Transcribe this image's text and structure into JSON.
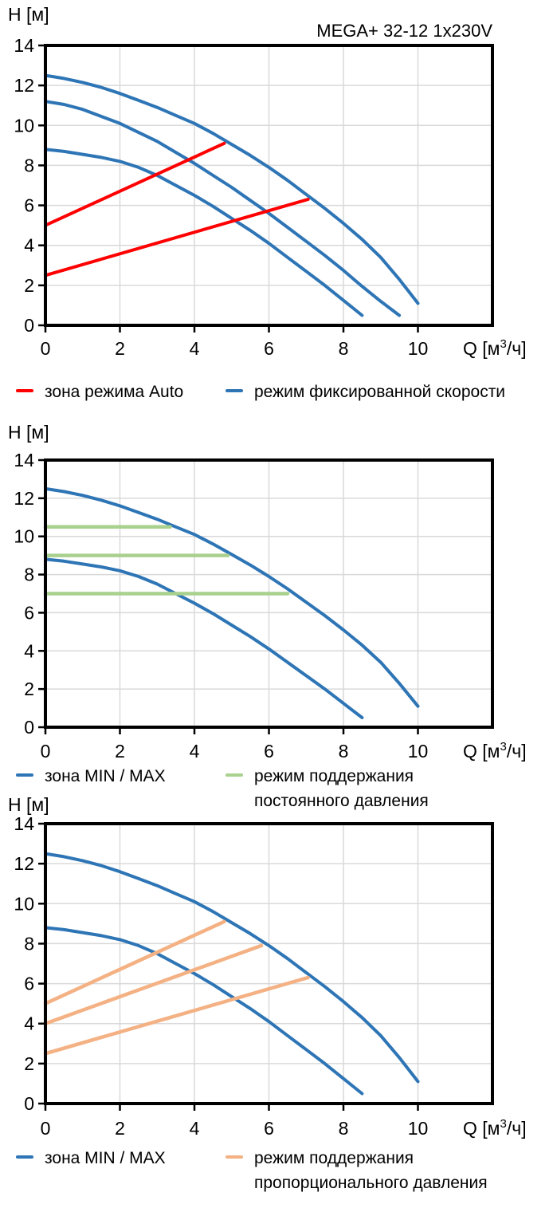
{
  "colors": {
    "curve_blue": "#2E75B6",
    "auto_red": "#FF0000",
    "const_pressure_green": "#A9D18E",
    "prop_pressure_orange": "#F4B183",
    "grid": "#D9D9D9",
    "axis": "#000000"
  },
  "chart_data": [
    {
      "type": "line",
      "title": "MEGA+ 32-12 1x230V",
      "ylabel": "H [м]",
      "xlabel": "Q [м³/ч]",
      "xlabel_parts": {
        "pre": "Q [м",
        "sup": "3",
        "post": "/ч]"
      },
      "xlim": [
        0,
        12
      ],
      "ylim": [
        0,
        14
      ],
      "x_ticks": [
        0,
        2,
        4,
        6,
        8,
        10
      ],
      "y_ticks": [
        0,
        2,
        4,
        6,
        8,
        10,
        12,
        14
      ],
      "grid": true,
      "series": [
        {
          "name": "fixed-speed-max-curve",
          "color": "#2E75B6",
          "width": 4,
          "x": [
            0,
            0.5,
            1,
            1.5,
            2,
            2.5,
            3,
            3.5,
            4,
            4.5,
            5,
            5.5,
            6,
            6.5,
            7,
            7.5,
            8,
            8.5,
            9,
            9.5,
            10
          ],
          "y": [
            12.5,
            12.35,
            12.15,
            11.9,
            11.6,
            11.25,
            10.9,
            10.5,
            10.1,
            9.6,
            9.05,
            8.5,
            7.9,
            7.25,
            6.55,
            5.85,
            5.1,
            4.3,
            3.4,
            2.3,
            1.1
          ]
        },
        {
          "name": "fixed-speed-nominal-curve",
          "color": "#2E75B6",
          "width": 4,
          "x": [
            0,
            0.5,
            1,
            1.5,
            2,
            2.5,
            3,
            3.5,
            4,
            4.5,
            5,
            5.5,
            6,
            6.5,
            7,
            7.5,
            8,
            8.5,
            9,
            9.5
          ],
          "y": [
            11.2,
            11.05,
            10.8,
            10.45,
            10.1,
            9.65,
            9.2,
            8.65,
            8.1,
            7.5,
            6.9,
            6.25,
            5.6,
            4.9,
            4.2,
            3.5,
            2.75,
            1.95,
            1.2,
            0.5
          ]
        },
        {
          "name": "fixed-speed-min-curve",
          "color": "#2E75B6",
          "width": 4,
          "x": [
            0,
            0.5,
            1,
            1.5,
            2,
            2.5,
            3,
            3.5,
            4,
            4.5,
            5,
            5.5,
            6,
            6.5,
            7,
            7.5,
            8,
            8.5
          ],
          "y": [
            8.8,
            8.7,
            8.55,
            8.4,
            8.2,
            7.9,
            7.5,
            7.0,
            6.5,
            5.95,
            5.35,
            4.75,
            4.1,
            3.4,
            2.7,
            2.0,
            1.25,
            0.5
          ]
        },
        {
          "name": "auto-zone-upper-line",
          "color": "#FF0000",
          "width": 4,
          "x": [
            0,
            4.8
          ],
          "y": [
            5.0,
            9.1
          ]
        },
        {
          "name": "auto-zone-lower-line",
          "color": "#FF0000",
          "width": 4,
          "x": [
            0,
            7.05
          ],
          "y": [
            2.5,
            6.3
          ]
        }
      ],
      "legend": [
        {
          "color": "#FF0000",
          "label_lines": [
            "зона режима Auto"
          ]
        },
        {
          "color": "#2E75B6",
          "label_lines": [
            "режим фиксированной скорости"
          ]
        }
      ]
    },
    {
      "type": "line",
      "title": "",
      "ylabel": "H [м]",
      "xlabel": "Q [м³/ч]",
      "xlabel_parts": {
        "pre": "Q [м",
        "sup": "3",
        "post": "/ч]"
      },
      "xlim": [
        0,
        12
      ],
      "ylim": [
        0,
        14
      ],
      "x_ticks": [
        0,
        2,
        4,
        6,
        8,
        10
      ],
      "y_ticks": [
        0,
        2,
        4,
        6,
        8,
        10,
        12,
        14
      ],
      "grid": true,
      "series": [
        {
          "name": "max-curve",
          "color": "#2E75B6",
          "width": 4,
          "x": [
            0,
            0.5,
            1,
            1.5,
            2,
            2.5,
            3,
            3.5,
            4,
            4.5,
            5,
            5.5,
            6,
            6.5,
            7,
            7.5,
            8,
            8.5,
            9,
            9.5,
            10
          ],
          "y": [
            12.5,
            12.35,
            12.15,
            11.9,
            11.6,
            11.25,
            10.9,
            10.5,
            10.1,
            9.6,
            9.05,
            8.5,
            7.9,
            7.25,
            6.55,
            5.85,
            5.1,
            4.3,
            3.4,
            2.3,
            1.1
          ]
        },
        {
          "name": "min-curve",
          "color": "#2E75B6",
          "width": 4,
          "x": [
            0,
            0.5,
            1,
            1.5,
            2,
            2.5,
            3,
            3.5,
            4,
            4.5,
            5,
            5.5,
            6,
            6.5,
            7,
            7.5,
            8,
            8.5
          ],
          "y": [
            8.8,
            8.7,
            8.55,
            8.4,
            8.2,
            7.9,
            7.5,
            7.0,
            6.5,
            5.95,
            5.35,
            4.75,
            4.1,
            3.4,
            2.7,
            2.0,
            1.25,
            0.5
          ]
        },
        {
          "name": "constant-pressure-line-10.5",
          "color": "#A9D18E",
          "width": 4.5,
          "x": [
            0,
            3.35
          ],
          "y": [
            10.5,
            10.5
          ]
        },
        {
          "name": "constant-pressure-line-9",
          "color": "#A9D18E",
          "width": 4.5,
          "x": [
            0,
            4.9
          ],
          "y": [
            9.0,
            9.0
          ]
        },
        {
          "name": "constant-pressure-line-7",
          "color": "#A9D18E",
          "width": 4.5,
          "x": [
            0,
            6.5
          ],
          "y": [
            7.0,
            7.0
          ]
        }
      ],
      "legend": [
        {
          "color": "#2E75B6",
          "label_lines": [
            "зона MIN / MAX"
          ]
        },
        {
          "color": "#A9D18E",
          "label_lines": [
            "режим поддержания",
            "постоянного давления"
          ]
        }
      ]
    },
    {
      "type": "line",
      "title": "",
      "ylabel": "H [м]",
      "xlabel": "Q [м³/ч]",
      "xlabel_parts": {
        "pre": "Q [м",
        "sup": "3",
        "post": "/ч]"
      },
      "xlim": [
        0,
        12
      ],
      "ylim": [
        0,
        14
      ],
      "x_ticks": [
        0,
        2,
        4,
        6,
        8,
        10
      ],
      "y_ticks": [
        0,
        2,
        4,
        6,
        8,
        10,
        12,
        14
      ],
      "grid": true,
      "series": [
        {
          "name": "max-curve",
          "color": "#2E75B6",
          "width": 4,
          "x": [
            0,
            0.5,
            1,
            1.5,
            2,
            2.5,
            3,
            3.5,
            4,
            4.5,
            5,
            5.5,
            6,
            6.5,
            7,
            7.5,
            8,
            8.5,
            9,
            9.5,
            10
          ],
          "y": [
            12.5,
            12.35,
            12.15,
            11.9,
            11.6,
            11.25,
            10.9,
            10.5,
            10.1,
            9.6,
            9.05,
            8.5,
            7.9,
            7.25,
            6.55,
            5.85,
            5.1,
            4.3,
            3.4,
            2.3,
            1.1
          ]
        },
        {
          "name": "min-curve",
          "color": "#2E75B6",
          "width": 4,
          "x": [
            0,
            0.5,
            1,
            1.5,
            2,
            2.5,
            3,
            3.5,
            4,
            4.5,
            5,
            5.5,
            6,
            6.5,
            7,
            7.5,
            8,
            8.5
          ],
          "y": [
            8.8,
            8.7,
            8.55,
            8.4,
            8.2,
            7.9,
            7.5,
            7.0,
            6.5,
            5.95,
            5.35,
            4.75,
            4.1,
            3.4,
            2.7,
            2.0,
            1.25,
            0.5
          ]
        },
        {
          "name": "proportional-pressure-upper-line",
          "color": "#F4B183",
          "width": 4.5,
          "x": [
            0,
            4.8
          ],
          "y": [
            5.0,
            9.1
          ]
        },
        {
          "name": "proportional-pressure-middle-line",
          "color": "#F4B183",
          "width": 4.5,
          "x": [
            0,
            5.8
          ],
          "y": [
            4.0,
            7.9
          ]
        },
        {
          "name": "proportional-pressure-lower-line",
          "color": "#F4B183",
          "width": 4.5,
          "x": [
            0,
            7.05
          ],
          "y": [
            2.5,
            6.3
          ]
        }
      ],
      "legend": [
        {
          "color": "#2E75B6",
          "label_lines": [
            "зона MIN / MAX"
          ]
        },
        {
          "color": "#F4B183",
          "label_lines": [
            "режим поддержания",
            "пропорционального давления"
          ]
        }
      ]
    }
  ]
}
